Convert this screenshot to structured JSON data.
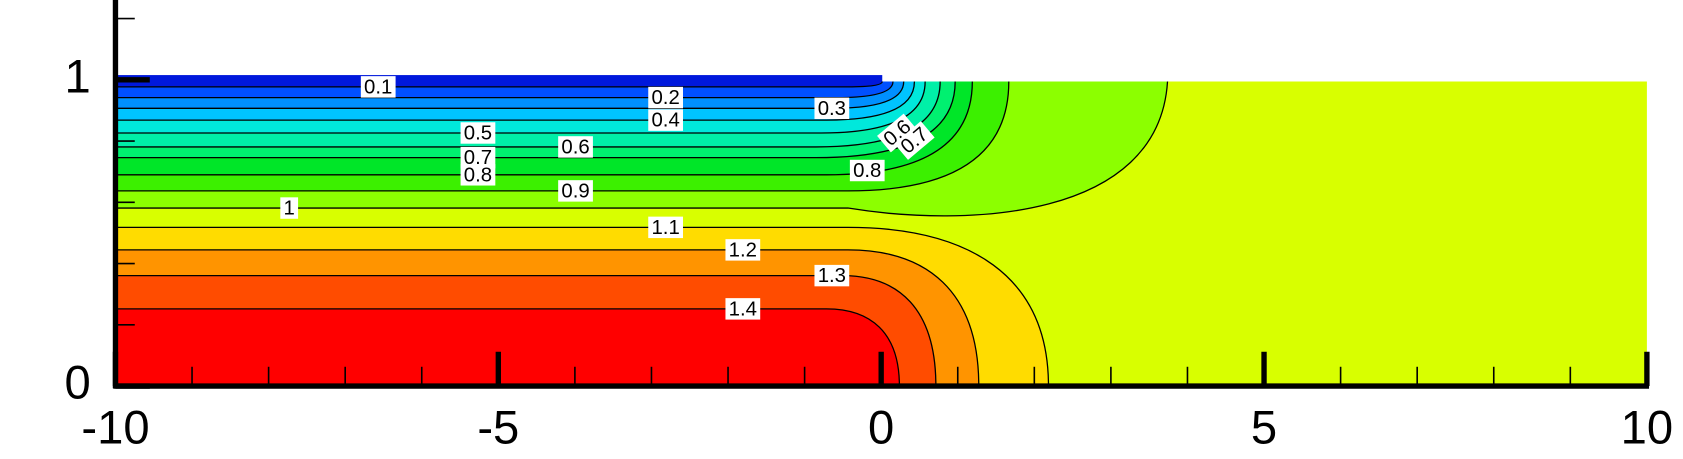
{
  "chart_data": {
    "type": "contour",
    "xlim": [
      -10,
      10
    ],
    "ylim": [
      0,
      1.25
    ],
    "xticks": [
      -10,
      -5,
      0,
      5,
      10
    ],
    "xminorticks": [
      -9,
      -8,
      -7,
      -6,
      -4,
      -3,
      -2,
      -1,
      1,
      2,
      3,
      4,
      6,
      7,
      8,
      9
    ],
    "yticks": [
      0,
      1
    ],
    "yminorticks": [
      0.2,
      0.4,
      0.6,
      0.8,
      1.2
    ],
    "levels": [
      0.1,
      0.2,
      0.3,
      0.4,
      0.5,
      0.6,
      0.7,
      0.8,
      0.9,
      1,
      1.1,
      1.2,
      1.3,
      1.4
    ],
    "colors": [
      "#0018dc",
      "#0050ff",
      "#0090ff",
      "#00c4ff",
      "#00e8dc",
      "#00f0a8",
      "#00f070",
      "#00e628",
      "#3cf000",
      "#8cff00",
      "#d8ff00",
      "#ffdc00",
      "#ff9400",
      "#ff4c00",
      "#ff0000"
    ]
  }
}
